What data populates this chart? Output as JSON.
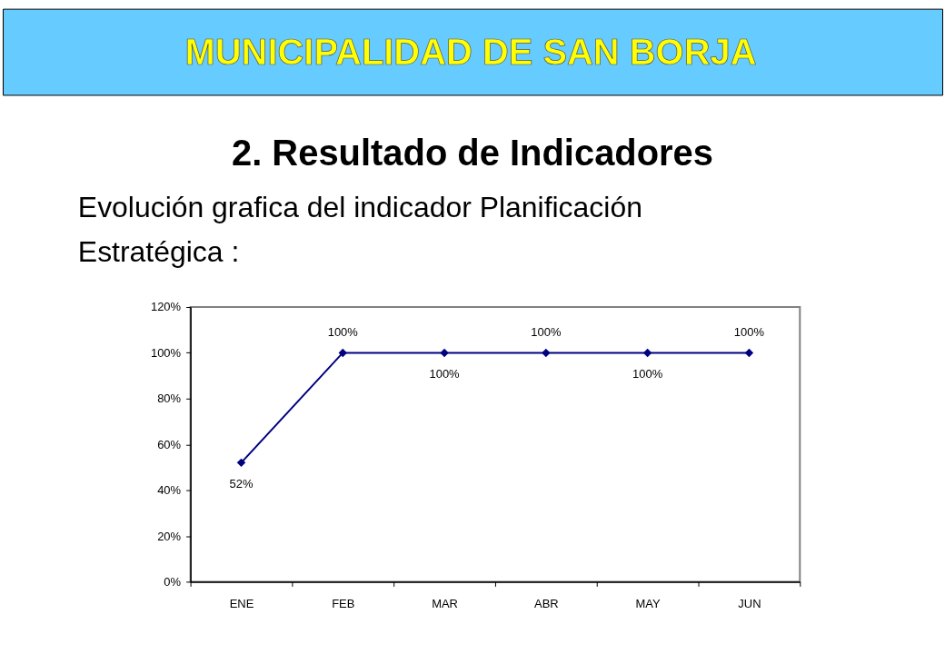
{
  "chart_data": {
    "type": "line",
    "title": "MUNICIPALIDAD DE SAN BORJA",
    "subtitle": "2. Resultado de Indicadores",
    "annotations": [
      "Evolución grafica del indicador Planificación Estratégica :"
    ],
    "categories": [
      "ENE",
      "FEB",
      "MAR",
      "ABR",
      "MAY",
      "JUN"
    ],
    "series": [
      {
        "color": "#000080",
        "values": [
          52,
          100,
          100,
          100,
          100,
          100
        ],
        "value_labels": [
          "52%",
          "100%",
          "100%",
          "100%",
          "100%",
          "100%"
        ]
      }
    ],
    "ylim": [
      0,
      120
    ],
    "yticks": [
      {
        "value": 0,
        "label": "0%"
      },
      {
        "value": 20,
        "label": "20%"
      },
      {
        "value": 40,
        "label": "40%"
      },
      {
        "value": 60,
        "label": "60%"
      },
      {
        "value": 80,
        "label": "80%"
      },
      {
        "value": 100,
        "label": "100%"
      },
      {
        "value": 120,
        "label": "120%"
      }
    ],
    "grid": false,
    "marker": "diamond",
    "line_style": "solid"
  }
}
